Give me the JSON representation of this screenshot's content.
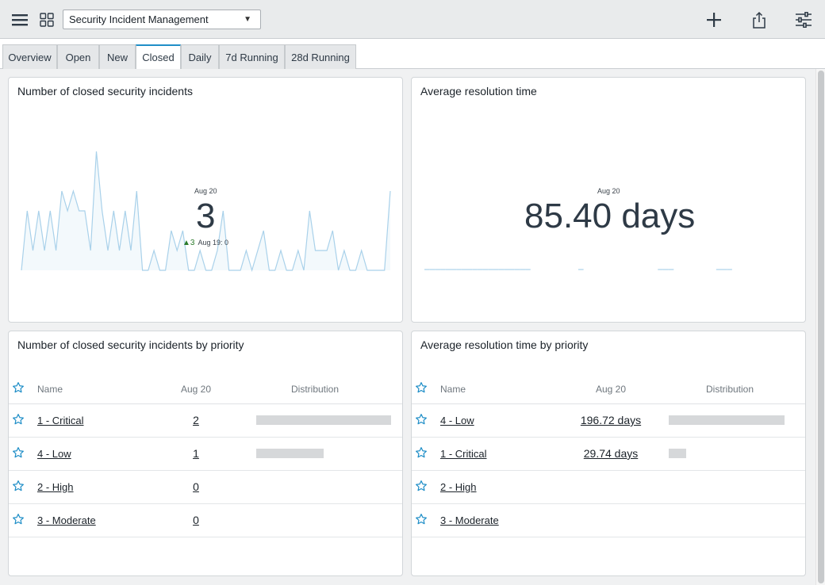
{
  "header": {
    "dashboard_name": "Security Incident Management",
    "icons": [
      "menu-icon",
      "grid-icon",
      "plus-icon",
      "share-icon",
      "filter-sliders-icon"
    ]
  },
  "tabs": [
    {
      "label": "Overview",
      "active": false
    },
    {
      "label": "Open",
      "active": false
    },
    {
      "label": "New",
      "active": false
    },
    {
      "label": "Closed",
      "active": true
    },
    {
      "label": "Daily",
      "active": false
    },
    {
      "label": "7d Running",
      "active": false
    },
    {
      "label": "28d Running",
      "active": false
    }
  ],
  "widgets": {
    "closed_count": {
      "title": "Number of closed security incidents",
      "date": "Aug 20",
      "value": "3",
      "trend_arrow": "▲",
      "trend_value": "3",
      "trend_label": "Aug 19: 0"
    },
    "avg_resolution": {
      "title": "Average resolution time",
      "date": "Aug 20",
      "value": "85.40 days"
    },
    "closed_by_priority": {
      "title": "Number of closed security incidents by priority",
      "columns": [
        "Name",
        "Aug 20",
        "Distribution"
      ],
      "rows": [
        {
          "name": "1 - Critical",
          "value": "2",
          "distribution": 1.0
        },
        {
          "name": "4 - Low",
          "value": "1",
          "distribution": 0.5
        },
        {
          "name": "2 - High",
          "value": "0",
          "distribution": 0
        },
        {
          "name": "3 - Moderate",
          "value": "0",
          "distribution": 0
        }
      ]
    },
    "resolution_by_priority": {
      "title": "Average resolution time by priority",
      "columns": [
        "Name",
        "Aug 20",
        "Distribution"
      ],
      "rows": [
        {
          "name": "4 - Low",
          "value": "196.72 days",
          "distribution": 1.0
        },
        {
          "name": "1 - Critical",
          "value": "29.74 days",
          "distribution": 0.15
        },
        {
          "name": "2 - High",
          "value": "",
          "distribution": 0
        },
        {
          "name": "3 - Moderate",
          "value": "",
          "distribution": 0
        }
      ]
    }
  },
  "chart_data": [
    {
      "type": "area",
      "series": [
        {
          "values": [
            0,
            3,
            1,
            3,
            1,
            3,
            1,
            4,
            3,
            4,
            3,
            3,
            1,
            6,
            3,
            1,
            3,
            1,
            3,
            1,
            4,
            0,
            0,
            1,
            0,
            0,
            2,
            1,
            2,
            0,
            0,
            1,
            0,
            0,
            1,
            3,
            0,
            0,
            0,
            1,
            0,
            1,
            2,
            0,
            0,
            1,
            0,
            0,
            1,
            0,
            3,
            1,
            1,
            1,
            2,
            0,
            1,
            0,
            0,
            1,
            0,
            0,
            0,
            0,
            4
          ]
        }
      ],
      "color": "#a9d1ea"
    },
    {
      "type": "line",
      "series": [
        {
          "values": [
            1,
            1,
            1,
            1,
            1,
            1,
            1,
            1,
            1,
            1,
            1,
            1,
            1,
            1,
            1,
            1,
            1,
            1,
            1,
            1,
            1,
            0,
            0,
            0,
            0,
            1,
            0,
            0,
            0,
            1,
            1,
            0,
            0,
            0,
            1,
            0,
            0,
            0,
            0,
            1,
            0,
            0,
            0,
            0,
            1,
            1,
            1,
            1,
            0,
            0,
            1,
            0,
            0,
            0,
            0,
            1,
            1,
            1,
            1,
            0,
            0,
            0,
            1,
            0,
            0
          ]
        }
      ],
      "color": "#a9d1ea"
    }
  ]
}
